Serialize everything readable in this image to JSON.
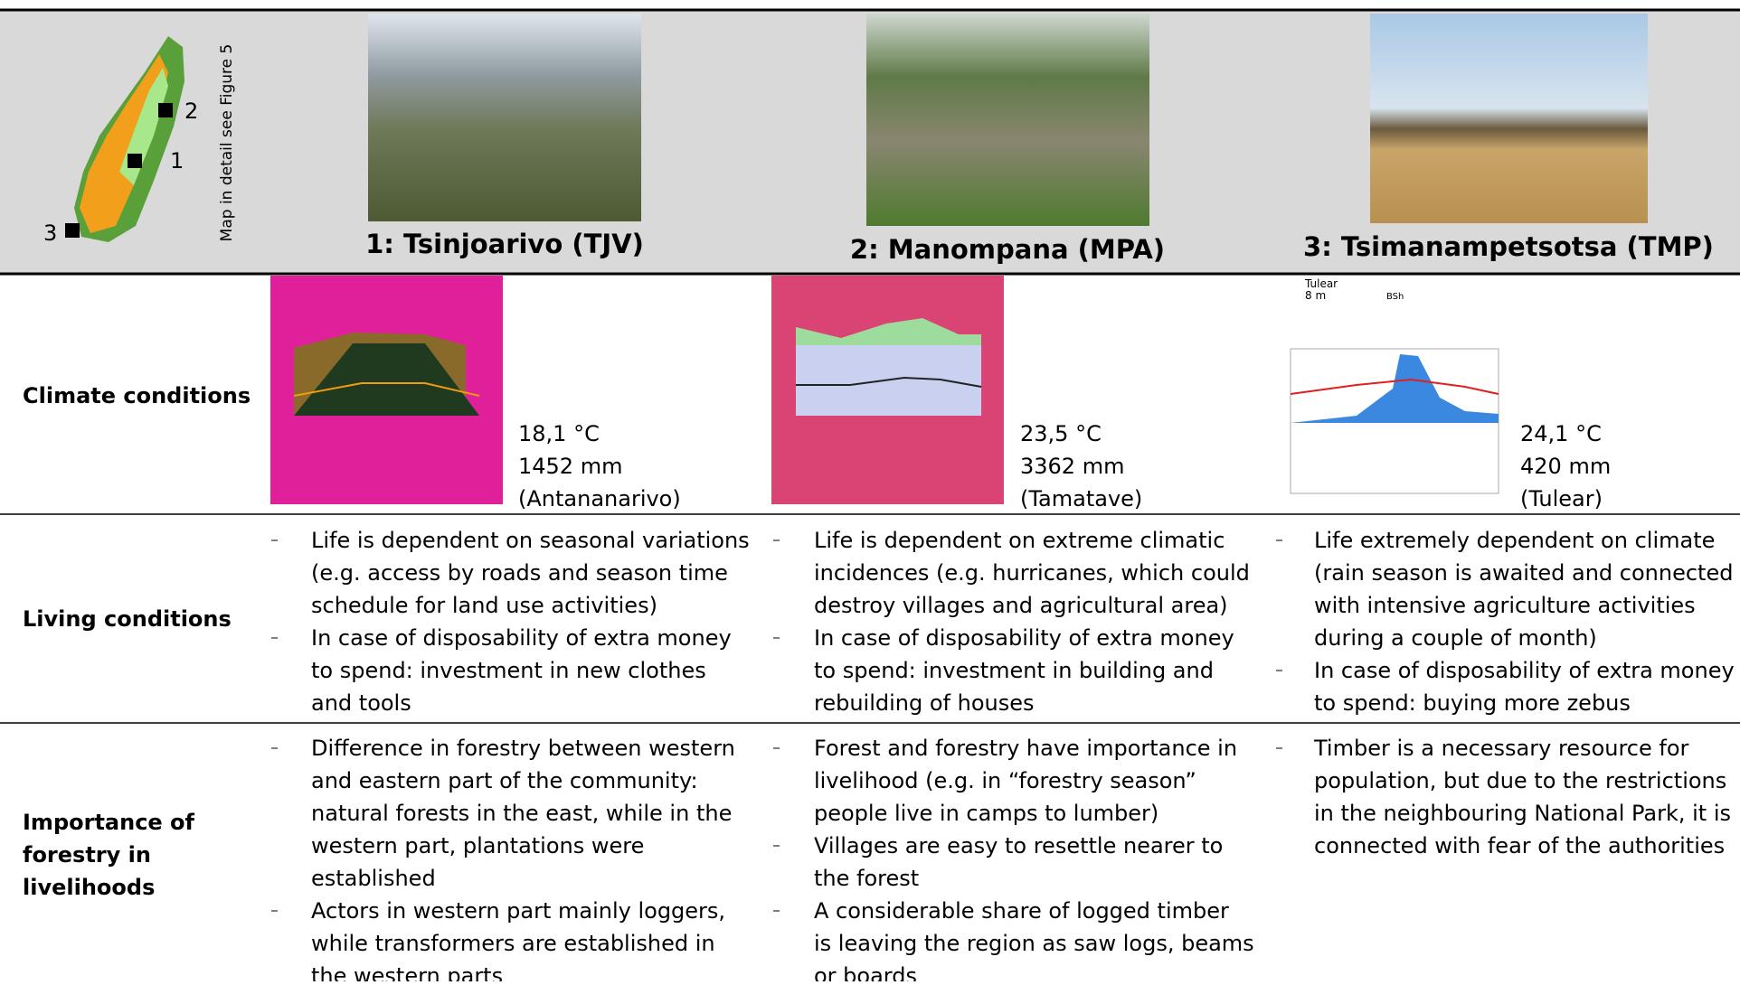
{
  "header": {
    "map_note": "Map in detail see Figure 5",
    "map_numbers": [
      "1",
      "2",
      "3"
    ],
    "sites": [
      "1: Tsinjoarivo (TJV)",
      "2: Manompana (MPA)",
      "3: Tsimanampetsotsa (TMP)"
    ]
  },
  "climate_chart_3": {
    "station": "Tulear",
    "altitude": "8 m",
    "class": "BSh"
  },
  "rows": [
    {
      "label": [
        "Climate conditions"
      ],
      "cells": [
        {
          "lines": [
            "18,1 °C",
            "1452 mm",
            "(Antananarivo)"
          ]
        },
        {
          "lines": [
            "23,5 °C",
            "3362 mm",
            "(Tamatave)"
          ]
        },
        {
          "lines": [
            "24,1 °C",
            "420 mm",
            "(Tulear)"
          ]
        }
      ]
    },
    {
      "label": [
        "Living conditions"
      ],
      "cells": [
        {
          "items": [
            {
              "lines": [
                "Life is dependent on seasonal variations",
                "(e.g. access by roads and season time",
                "schedule for land use activities)"
              ]
            },
            {
              "lines": [
                "In case of disposability of extra money",
                "to spend: investment in new clothes",
                "and tools"
              ]
            }
          ]
        },
        {
          "items": [
            {
              "lines": [
                "Life is dependent on extreme climatic",
                "incidences (e.g. hurricanes, which could",
                "destroy villages and agricultural area)"
              ]
            },
            {
              "lines": [
                "In case of disposability of extra money",
                "to spend: investment in building and",
                "rebuilding of houses"
              ]
            }
          ]
        },
        {
          "items": [
            {
              "lines": [
                "Life extremely dependent on climate",
                "(rain season is awaited and connected",
                "with intensive agriculture activities",
                "during a couple of month)"
              ]
            },
            {
              "lines": [
                "In case of disposability of extra money",
                "to spend: buying more zebus"
              ]
            }
          ]
        }
      ]
    },
    {
      "label": [
        "Importance of",
        "forestry in",
        "livelihoods"
      ],
      "cells": [
        {
          "items": [
            {
              "lines": [
                "Difference in forestry between western",
                "and eastern part of the community:",
                "natural forests in the east, while in the",
                "western part, plantations were",
                "established"
              ]
            },
            {
              "lines": [
                "Actors in western part mainly loggers,",
                "while transformers are established in",
                "the western parts"
              ]
            }
          ]
        },
        {
          "items": [
            {
              "lines": [
                "Forest and forestry have importance in",
                "livelihood (e.g. in “forestry season”",
                "people live in camps to lumber)"
              ]
            },
            {
              "lines": [
                "Villages are easy to resettle nearer to",
                "the forest"
              ]
            },
            {
              "lines": [
                "A considerable share of logged timber",
                "is leaving the region as saw logs, beams",
                "or boards"
              ]
            }
          ]
        },
        {
          "items": [
            {
              "lines": [
                "Timber is a necessary resource for",
                "population, but due to the restrictions",
                "in the neighbouring National Park, it is",
                "connected with fear of the authorities"
              ]
            }
          ]
        }
      ]
    }
  ]
}
